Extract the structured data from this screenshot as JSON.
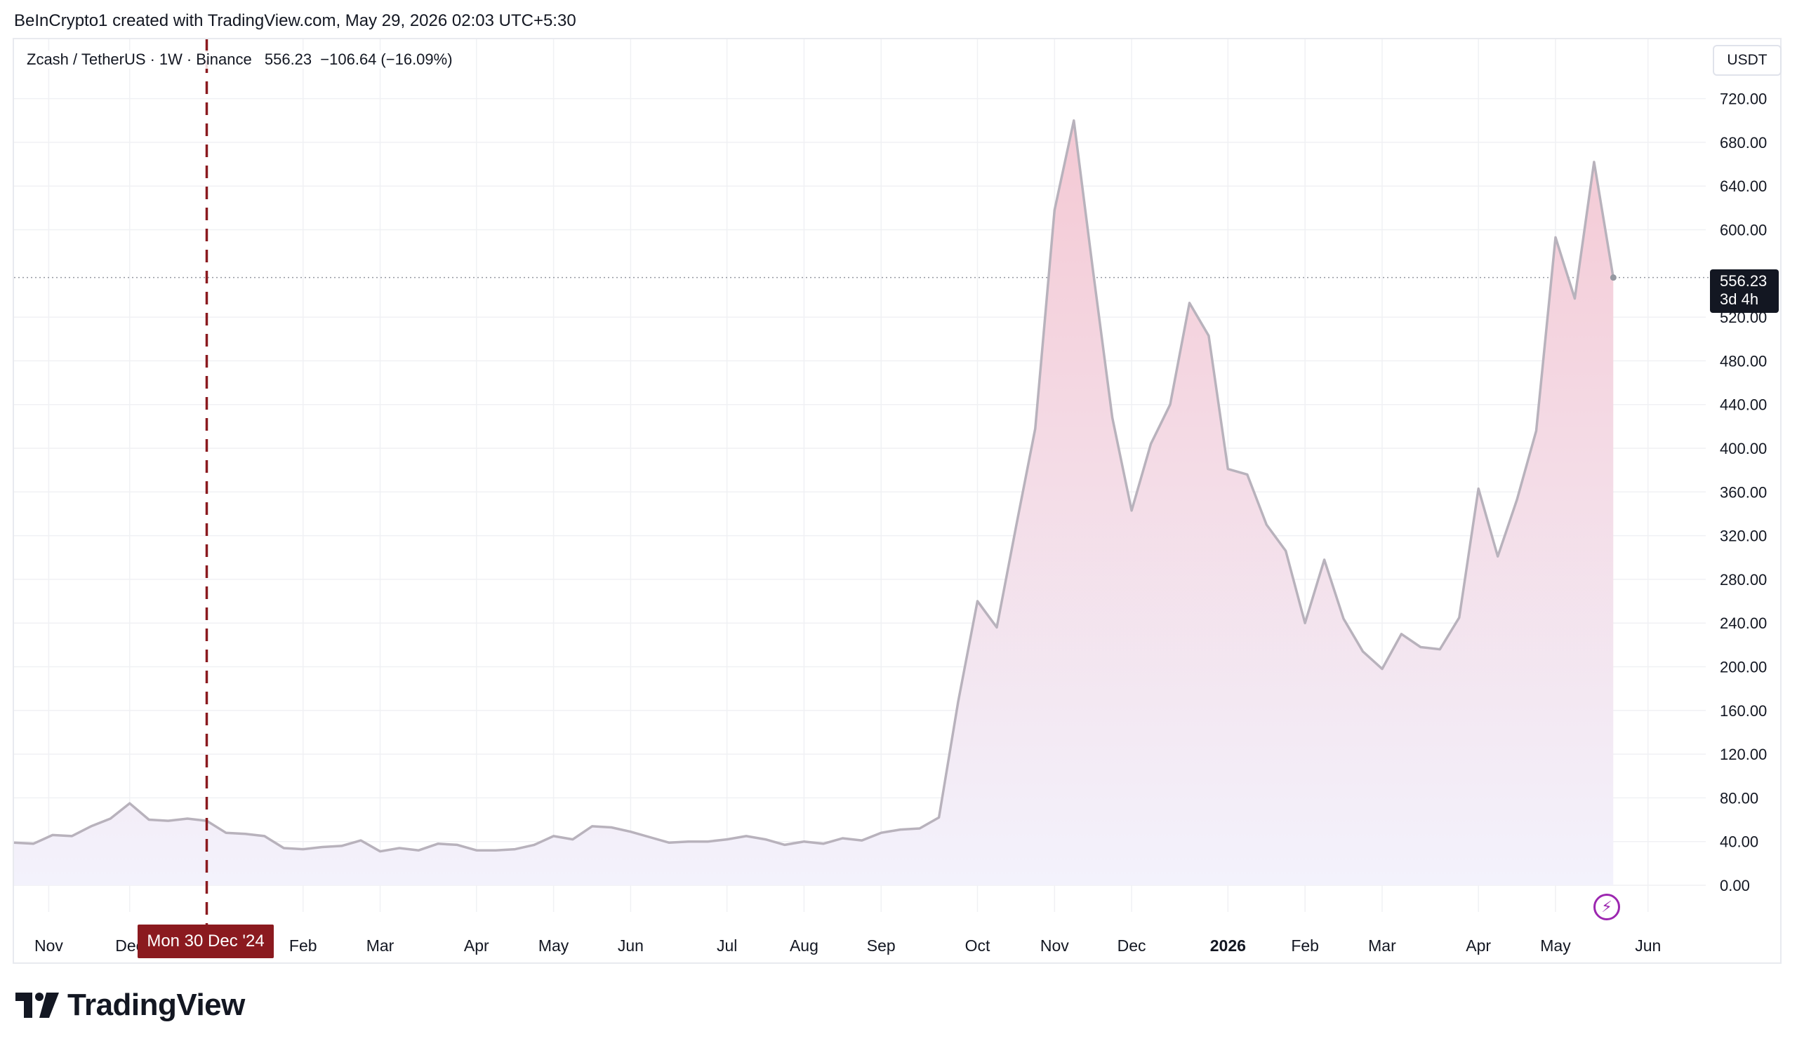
{
  "attribution": "BeInCrypto1 created with TradingView.com, May 29, 2026 02:03 UTC+5:30",
  "legend": {
    "symbol": "Zcash / TetherUS",
    "interval": "1W",
    "exchange": "Binance",
    "last": "556.23",
    "change": "−106.64",
    "change_pct": "(−16.09%)"
  },
  "currency_button": "USDT",
  "price_tag": {
    "price": "556.23",
    "countdown": "3d 4h"
  },
  "crosshair_date": "Mon 30 Dec '24",
  "logo_text": "TradingView",
  "icons": {
    "alert": "lightning-bolt-icon",
    "logo": "tradingview-logo-icon"
  },
  "colors": {
    "line": "#b8b2bc",
    "fill_top": "#f4c9d4",
    "fill_bottom": "#f1effb",
    "crosshair": "#8b1a1f",
    "accent_purple": "#9c27b0"
  },
  "chart_data": {
    "type": "area",
    "y_unit": "USDT",
    "ylim": [
      -40,
      730
    ],
    "y_ticks": [
      "720.00",
      "680.00",
      "640.00",
      "600.00",
      "520.00",
      "480.00",
      "440.00",
      "400.00",
      "360.00",
      "320.00",
      "280.00",
      "240.00",
      "200.00",
      "160.00",
      "120.00",
      "80.00",
      "40.00",
      "0.00"
    ],
    "x_ticks": [
      {
        "label": "Nov",
        "week": 1.8
      },
      {
        "label": "Dec",
        "week": 6
      },
      {
        "label": "Feb",
        "week": 15
      },
      {
        "label": "Mar",
        "week": 19
      },
      {
        "label": "Apr",
        "week": 24
      },
      {
        "label": "May",
        "week": 28
      },
      {
        "label": "Jun",
        "week": 32
      },
      {
        "label": "Jul",
        "week": 37
      },
      {
        "label": "Aug",
        "week": 41
      },
      {
        "label": "Sep",
        "week": 45
      },
      {
        "label": "Oct",
        "week": 50
      },
      {
        "label": "Nov",
        "week": 54
      },
      {
        "label": "Dec",
        "week": 58
      },
      {
        "label": "2026",
        "week": 63,
        "bold": true
      },
      {
        "label": "Feb",
        "week": 67
      },
      {
        "label": "Mar",
        "week": 71
      },
      {
        "label": "Apr",
        "week": 76
      },
      {
        "label": "May",
        "week": 80
      },
      {
        "label": "Jun",
        "week": 84.8
      }
    ],
    "crosshair_week": 10,
    "last_price": 556.23,
    "series": [
      {
        "values": [
          39,
          38,
          46,
          45,
          54,
          61,
          75,
          60,
          59,
          61,
          59,
          48,
          47,
          45,
          34,
          33,
          35,
          36,
          41,
          31,
          34,
          32,
          38,
          37,
          32,
          32,
          33,
          37,
          45,
          42,
          54,
          53,
          49,
          44,
          39,
          40,
          40,
          42,
          45,
          42,
          37,
          40,
          38,
          43,
          41,
          48,
          51,
          52,
          62,
          168,
          260,
          236,
          328,
          418,
          618,
          700,
          562,
          428,
          343,
          404,
          440,
          533,
          503,
          381,
          376,
          330,
          306,
          240,
          298,
          244,
          214,
          198,
          230,
          218,
          216,
          245,
          363,
          301,
          353,
          416,
          593,
          537,
          662,
          556
        ]
      }
    ]
  }
}
